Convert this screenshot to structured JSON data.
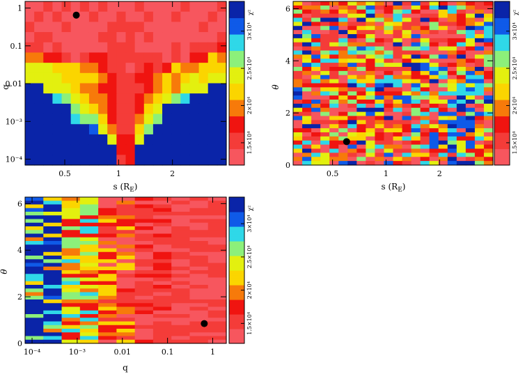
{
  "colorbar": {
    "label": "χ²",
    "ticks": [
      {
        "value": 15000,
        "label": "1.5×10⁴"
      },
      {
        "value": 20000,
        "label": "2×10⁴"
      },
      {
        "value": 25000,
        "label": "2.5×10⁴"
      },
      {
        "value": 30000,
        "label": "3×10⁴"
      }
    ],
    "range": [
      12000,
      34000
    ],
    "colors": [
      "#f7565e",
      "#f43c39",
      "#f01410",
      "#f77a0a",
      "#fbd500",
      "#e3f00f",
      "#8cf07a",
      "#2fd8e8",
      "#0f5ae8",
      "#0a24a8"
    ]
  },
  "chart_data": [
    {
      "type": "heatmap",
      "panel": "top-left",
      "xlabel": "s (R_E)",
      "ylabel": "q",
      "x_scale": "log",
      "y_scale": "log",
      "xlim": [
        0.3,
        4.0
      ],
      "ylim": [
        7e-05,
        1.5
      ],
      "xticks": [
        {
          "value": 0.5,
          "label": "0.5"
        },
        {
          "value": 1,
          "label": "1"
        },
        {
          "value": 2,
          "label": "2"
        }
      ],
      "yticks": [
        {
          "value": 0.0001,
          "label": "10⁻⁴"
        },
        {
          "value": 0.001,
          "label": "10⁻³"
        },
        {
          "value": 0.01,
          "label": "0.01"
        },
        {
          "value": 0.1,
          "label": "0.1"
        },
        {
          "value": 1,
          "label": "1"
        }
      ],
      "best_fit": {
        "x": 0.58,
        "y": 0.65
      },
      "grid": [
        [
          0,
          0,
          1,
          0,
          1,
          0,
          1,
          0,
          1,
          0,
          0,
          0,
          1,
          0,
          0,
          0,
          0,
          1,
          0,
          0,
          0,
          1
        ],
        [
          0,
          1,
          0,
          1,
          0,
          0,
          0,
          1,
          0,
          0,
          1,
          0,
          0,
          1,
          0,
          0,
          1,
          0,
          0,
          0,
          1,
          0
        ],
        [
          1,
          0,
          0,
          0,
          1,
          0,
          0,
          0,
          0,
          1,
          1,
          1,
          1,
          0,
          0,
          0,
          0,
          0,
          0,
          1,
          0,
          0
        ],
        [
          0,
          1,
          1,
          0,
          0,
          0,
          0,
          0,
          1,
          1,
          0,
          1,
          0,
          1,
          0,
          0,
          0,
          0,
          0,
          0,
          0,
          1
        ],
        [
          1,
          1,
          0,
          1,
          0,
          0,
          0,
          0,
          0,
          1,
          1,
          1,
          0,
          0,
          0,
          0,
          1,
          0,
          1,
          1,
          1,
          2
        ],
        [
          3,
          3,
          2,
          2,
          1,
          0,
          1,
          2,
          2,
          1,
          1,
          1,
          1,
          1,
          1,
          0,
          1,
          0,
          2,
          2,
          4,
          3
        ],
        [
          5,
          5,
          5,
          4,
          4,
          4,
          3,
          3,
          2,
          1,
          1,
          0,
          1,
          2,
          1,
          2,
          4,
          3,
          3,
          4,
          4,
          4
        ],
        [
          5,
          5,
          5,
          5,
          4,
          4,
          4,
          4,
          3,
          2,
          1,
          1,
          2,
          2,
          3,
          4,
          3,
          4,
          5,
          4,
          5,
          5
        ],
        [
          9,
          9,
          5,
          5,
          5,
          4,
          3,
          3,
          2,
          2,
          1,
          1,
          1,
          2,
          3,
          4,
          3,
          5,
          5,
          5,
          9,
          9
        ],
        [
          9,
          9,
          9,
          7,
          6,
          5,
          4,
          3,
          3,
          2,
          1,
          1,
          2,
          3,
          4,
          5,
          6,
          7,
          9,
          9,
          9,
          9
        ],
        [
          9,
          9,
          9,
          9,
          9,
          6,
          5,
          4,
          3,
          2,
          1,
          1,
          2,
          4,
          5,
          9,
          9,
          9,
          9,
          9,
          9,
          9
        ],
        [
          9,
          9,
          9,
          9,
          9,
          7,
          6,
          6,
          4,
          2,
          1,
          1,
          3,
          5,
          6,
          9,
          9,
          9,
          9,
          9,
          9,
          9
        ],
        [
          9,
          9,
          9,
          9,
          9,
          9,
          9,
          8,
          5,
          3,
          1,
          1,
          4,
          6,
          9,
          9,
          9,
          9,
          9,
          9,
          9,
          9
        ],
        [
          9,
          9,
          9,
          9,
          9,
          9,
          9,
          9,
          9,
          5,
          2,
          2,
          5,
          9,
          9,
          9,
          9,
          9,
          9,
          9,
          9,
          9
        ],
        [
          9,
          9,
          9,
          9,
          9,
          9,
          9,
          9,
          9,
          9,
          2,
          2,
          9,
          9,
          9,
          9,
          9,
          9,
          9,
          9,
          9,
          9
        ],
        [
          9,
          9,
          9,
          9,
          9,
          9,
          9,
          9,
          9,
          9,
          1,
          2,
          9,
          9,
          9,
          9,
          9,
          9,
          9,
          9,
          9,
          9
        ]
      ]
    },
    {
      "type": "heatmap",
      "panel": "top-right",
      "xlabel": "s (R_E)",
      "ylabel": "θ",
      "x_scale": "log",
      "y_scale": "linear",
      "xlim": [
        0.3,
        4.0
      ],
      "ylim": [
        0,
        6.28
      ],
      "xticks": [
        {
          "value": 0.5,
          "label": "0.5"
        },
        {
          "value": 1,
          "label": "1"
        },
        {
          "value": 2,
          "label": "2"
        }
      ],
      "yticks": [
        {
          "value": 0,
          "label": "0"
        },
        {
          "value": 2,
          "label": "2"
        },
        {
          "value": 4,
          "label": "4"
        },
        {
          "value": 6,
          "label": "6"
        }
      ],
      "best_fit": {
        "x": 0.6,
        "y": 0.9
      },
      "rows": 40,
      "cols": 22,
      "pattern": "noisy"
    },
    {
      "type": "heatmap",
      "panel": "bottom-left",
      "xlabel": "q",
      "ylabel": "θ",
      "x_scale": "log",
      "y_scale": "linear",
      "xlim": [
        7e-05,
        2.0
      ],
      "ylim": [
        0,
        6.28
      ],
      "xticks": [
        {
          "value": 0.0001,
          "label": "10⁻⁴"
        },
        {
          "value": 0.001,
          "label": "10⁻³"
        },
        {
          "value": 0.01,
          "label": "0.01"
        },
        {
          "value": 0.1,
          "label": "0.1"
        },
        {
          "value": 1,
          "label": "1"
        }
      ],
      "yticks": [
        {
          "value": 0,
          "label": "0"
        },
        {
          "value": 2,
          "label": "2"
        },
        {
          "value": 4,
          "label": "4"
        },
        {
          "value": 6,
          "label": "6"
        }
      ],
      "best_fit": {
        "x": 0.65,
        "y": 0.85
      },
      "rows": 40,
      "cols": 11,
      "pattern": "gradient"
    }
  ]
}
